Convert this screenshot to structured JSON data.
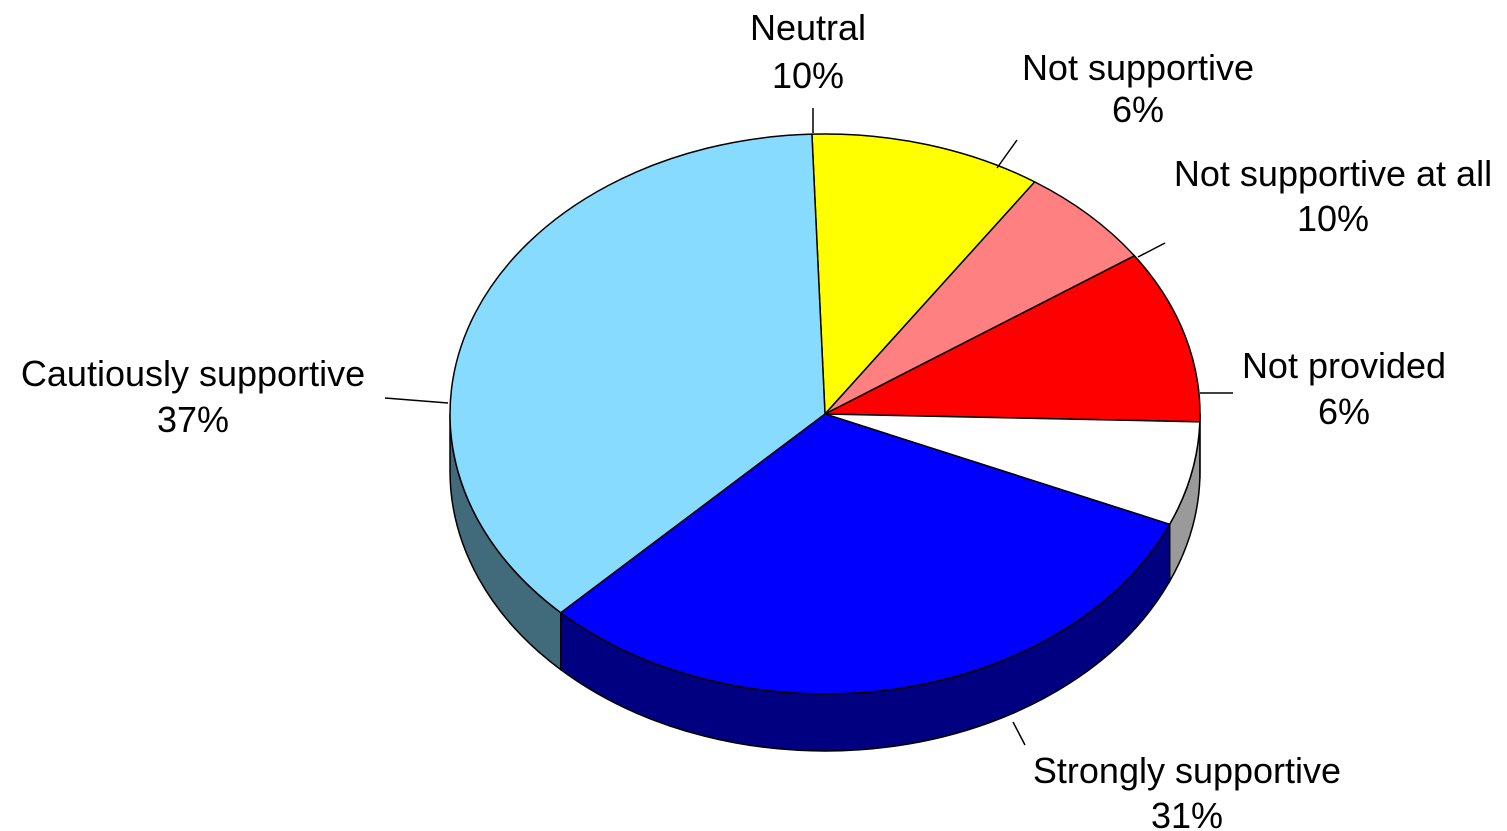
{
  "chart_data": {
    "type": "pie",
    "style": "3d",
    "title": "",
    "start_angle_deg": -92,
    "direction": "clockwise",
    "slices": [
      {
        "label": "Neutral",
        "percent_text": "10%",
        "value": 10,
        "color": "#FFFF00",
        "side_color": "#8A8A00"
      },
      {
        "label": "Not supportive",
        "percent_text": "6%",
        "value": 6,
        "color": "#FF8080",
        "side_color": "#8A4545"
      },
      {
        "label": "Not supportive at all",
        "percent_text": "10%",
        "value": 10,
        "color": "#FF0000",
        "side_color": "#800000"
      },
      {
        "label": "Not provided",
        "percent_text": "6%",
        "value": 6,
        "color": "#FFFFFF",
        "side_color": "#9A9A9A"
      },
      {
        "label": "Strongly supportive",
        "percent_text": "31%",
        "value": 31,
        "color": "#0000FF",
        "side_color": "#000080"
      },
      {
        "label": "Cautiously supportive",
        "percent_text": "37%",
        "value": 37,
        "color": "#87DBFF",
        "side_color": "#416A7A"
      }
    ]
  }
}
